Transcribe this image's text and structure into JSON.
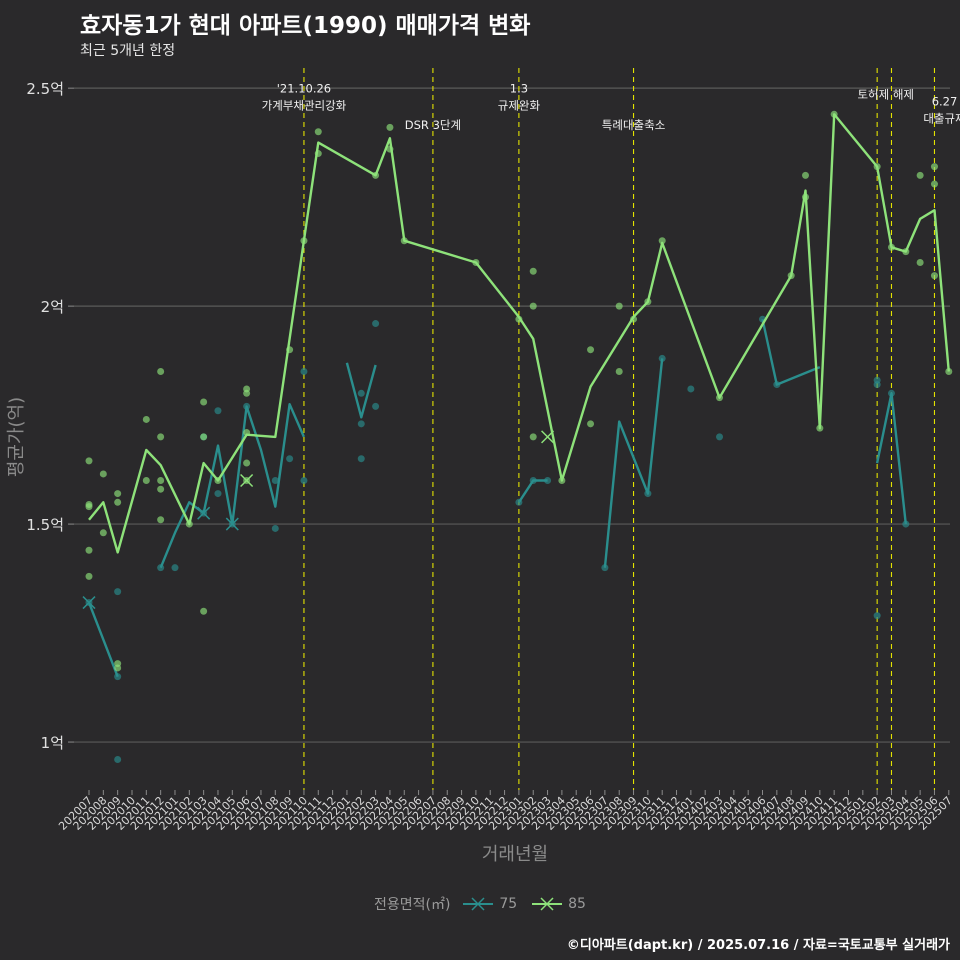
{
  "title": "효자동1가 현대 아파트(1990) 매매가격 변화",
  "subtitle": "최근 5개년 한정",
  "caption": "©디아파트(dapt.kr) / 2025.07.16 / 자료=국토교통부 실거래가",
  "chart_data": {
    "type": "line",
    "xlabel": "거래년월",
    "ylabel": "평균가(억)",
    "ylim": [
      0.89,
      2.56
    ],
    "y_ticks": [
      {
        "value": 1.0,
        "label": "1억"
      },
      {
        "value": 1.5,
        "label": "1.5억"
      },
      {
        "value": 2.0,
        "label": "2억"
      },
      {
        "value": 2.5,
        "label": "2.5억"
      }
    ],
    "x_categories": [
      "202007",
      "202008",
      "202009",
      "202010",
      "202011",
      "202012",
      "202101",
      "202102",
      "202103",
      "202104",
      "202105",
      "202106",
      "202107",
      "202108",
      "202109",
      "202110",
      "202111",
      "202112",
      "202201",
      "202202",
      "202203",
      "202204",
      "202205",
      "202206",
      "202207",
      "202208",
      "202209",
      "202210",
      "202211",
      "202212",
      "202301",
      "202302",
      "202303",
      "202304",
      "202305",
      "202306",
      "202307",
      "202308",
      "202309",
      "202310",
      "202311",
      "202312",
      "202401",
      "202402",
      "202403",
      "202404",
      "202405",
      "202406",
      "202407",
      "202408",
      "202409",
      "202410",
      "202411",
      "202412",
      "202501",
      "202502",
      "202503",
      "202504",
      "202505",
      "202506",
      "202507"
    ],
    "legend_title": "전용면적(㎡)",
    "series": [
      {
        "name": "75",
        "color": "#2a8e8d",
        "lines": [
          [
            [
              0,
              1.32
            ],
            [
              2,
              1.15
            ]
          ],
          [
            [
              5,
              1.4
            ],
            [
              6,
              1.48
            ],
            [
              7,
              1.55
            ],
            [
              8,
              1.525
            ],
            [
              9,
              1.68
            ],
            [
              10,
              1.5
            ],
            [
              11,
              1.77
            ],
            [
              12,
              1.67
            ],
            [
              13,
              1.54
            ],
            [
              14,
              1.775
            ],
            [
              15,
              1.7
            ]
          ],
          [
            [
              18,
              1.87
            ],
            [
              19,
              1.745
            ],
            [
              20,
              1.865
            ]
          ],
          [
            [
              30,
              1.55
            ],
            [
              31,
              1.6
            ],
            [
              32,
              1.6
            ]
          ],
          [
            [
              36,
              1.4
            ],
            [
              37,
              1.735
            ],
            [
              39,
              1.57
            ],
            [
              40,
              1.88
            ]
          ],
          [
            [
              47,
              1.97
            ],
            [
              48,
              1.82
            ],
            [
              51,
              1.86
            ]
          ],
          [
            [
              55,
              1.64
            ],
            [
              56,
              1.8
            ],
            [
              57,
              1.5
            ]
          ]
        ],
        "points": [
          [
            0,
            1.32
          ],
          [
            2,
            1.15
          ],
          [
            2,
            0.96
          ],
          [
            2,
            1.345
          ],
          [
            5,
            1.4
          ],
          [
            6,
            1.4
          ],
          [
            8,
            1.525
          ],
          [
            8,
            1.7
          ],
          [
            9,
            1.76
          ],
          [
            9,
            1.57
          ],
          [
            10,
            1.5
          ],
          [
            11,
            1.77
          ],
          [
            13,
            1.49
          ],
          [
            13,
            1.6
          ],
          [
            14,
            1.65
          ],
          [
            15,
            1.85
          ],
          [
            15,
            1.6
          ],
          [
            19,
            1.65
          ],
          [
            19,
            1.73
          ],
          [
            19,
            1.8
          ],
          [
            20,
            1.96
          ],
          [
            20,
            1.77
          ],
          [
            30,
            1.55
          ],
          [
            31,
            1.6
          ],
          [
            32,
            1.6
          ],
          [
            36,
            1.4
          ],
          [
            39,
            1.57
          ],
          [
            40,
            1.88
          ],
          [
            42,
            1.81
          ],
          [
            44,
            1.7
          ],
          [
            47,
            1.97
          ],
          [
            48,
            1.82
          ],
          [
            55,
            1.82
          ],
          [
            55,
            1.83
          ],
          [
            55,
            1.29
          ],
          [
            56,
            1.8
          ],
          [
            57,
            1.5
          ]
        ],
        "x_marks": [
          [
            0,
            1.32
          ],
          [
            8,
            1.525
          ],
          [
            10,
            1.5
          ]
        ]
      },
      {
        "name": "85",
        "color": "#8ee27a",
        "lines": [
          [
            [
              0,
              1.51
            ],
            [
              1,
              1.55
            ],
            [
              2,
              1.435
            ],
            [
              4,
              1.67
            ],
            [
              5,
              1.635
            ],
            [
              7,
              1.5
            ],
            [
              8,
              1.64
            ],
            [
              9,
              1.6
            ],
            [
              11,
              1.705
            ],
            [
              13,
              1.7
            ],
            [
              15,
              2.15
            ],
            [
              16,
              2.375
            ],
            [
              20,
              2.3
            ],
            [
              21,
              2.385
            ],
            [
              22,
              2.15
            ],
            [
              27,
              2.1
            ],
            [
              30,
              1.975
            ],
            [
              31,
              1.925
            ],
            [
              33,
              1.6
            ],
            [
              35,
              1.815
            ],
            [
              38,
              1.975
            ],
            [
              39,
              2.01
            ],
            [
              40,
              2.145
            ],
            [
              44,
              1.79
            ],
            [
              49,
              2.07
            ],
            [
              50,
              2.265
            ],
            [
              51,
              1.72
            ],
            [
              52,
              2.44
            ],
            [
              55,
              2.32
            ],
            [
              56,
              2.135
            ],
            [
              57,
              2.125
            ],
            [
              58,
              2.2
            ],
            [
              59,
              2.22
            ],
            [
              60,
              1.85
            ]
          ]
        ],
        "points": [
          [
            0,
            1.645
          ],
          [
            0,
            1.54
          ],
          [
            0,
            1.545
          ],
          [
            0,
            1.44
          ],
          [
            0,
            1.38
          ],
          [
            1,
            1.48
          ],
          [
            1,
            1.615
          ],
          [
            2,
            1.57
          ],
          [
            2,
            1.55
          ],
          [
            2,
            1.18
          ],
          [
            2,
            1.17
          ],
          [
            4,
            1.74
          ],
          [
            4,
            1.6
          ],
          [
            5,
            1.85
          ],
          [
            5,
            1.7
          ],
          [
            5,
            1.6
          ],
          [
            5,
            1.58
          ],
          [
            5,
            1.51
          ],
          [
            7,
            1.5
          ],
          [
            8,
            1.78
          ],
          [
            8,
            1.7
          ],
          [
            8,
            1.3
          ],
          [
            9,
            1.6
          ],
          [
            11,
            1.81
          ],
          [
            11,
            1.8
          ],
          [
            11,
            1.71
          ],
          [
            11,
            1.64
          ],
          [
            11,
            1.6
          ],
          [
            14,
            1.9
          ],
          [
            15,
            2.15
          ],
          [
            16,
            2.4
          ],
          [
            16,
            2.35
          ],
          [
            20,
            2.3
          ],
          [
            21,
            2.41
          ],
          [
            21,
            2.36
          ],
          [
            22,
            2.15
          ],
          [
            27,
            2.1
          ],
          [
            30,
            1.97
          ],
          [
            31,
            2.08
          ],
          [
            31,
            2.0
          ],
          [
            31,
            1.7
          ],
          [
            33,
            1.6
          ],
          [
            35,
            1.9
          ],
          [
            35,
            1.73
          ],
          [
            37,
            2.0
          ],
          [
            37,
            1.85
          ],
          [
            38,
            1.97
          ],
          [
            39,
            2.01
          ],
          [
            40,
            2.15
          ],
          [
            44,
            1.79
          ],
          [
            49,
            2.07
          ],
          [
            50,
            2.3
          ],
          [
            50,
            2.25
          ],
          [
            51,
            1.72
          ],
          [
            52,
            2.44
          ],
          [
            55,
            2.32
          ],
          [
            56,
            2.135
          ],
          [
            57,
            2.125
          ],
          [
            58,
            2.3
          ],
          [
            58,
            2.1
          ],
          [
            59,
            2.32
          ],
          [
            59,
            2.28
          ],
          [
            59,
            2.07
          ],
          [
            60,
            1.85
          ]
        ],
        "x_marks": [
          [
            11,
            1.6
          ],
          [
            32,
            1.7
          ]
        ]
      }
    ],
    "annotations": [
      {
        "x": 15,
        "lines": [
          "'21.10.26",
          "가계부채관리강화"
        ],
        "value": 2.465
      },
      {
        "x": 24,
        "lines": [
          "DSR 3단계"
        ],
        "value": 2.42
      },
      {
        "x": 30,
        "lines": [
          "1.3",
          "규제완화"
        ],
        "value": 2.465
      },
      {
        "x": 38,
        "lines": [
          "특례대출축소"
        ],
        "value": 2.42
      },
      {
        "x": 55.6,
        "lines": [
          "토허제 해제"
        ],
        "value": 2.49
      },
      {
        "x": 59.7,
        "lines": [
          "6.27",
          "대출규제"
        ],
        "value": 2.435
      }
    ],
    "event_lines": [
      15,
      24,
      30,
      38,
      55,
      56,
      59
    ]
  }
}
